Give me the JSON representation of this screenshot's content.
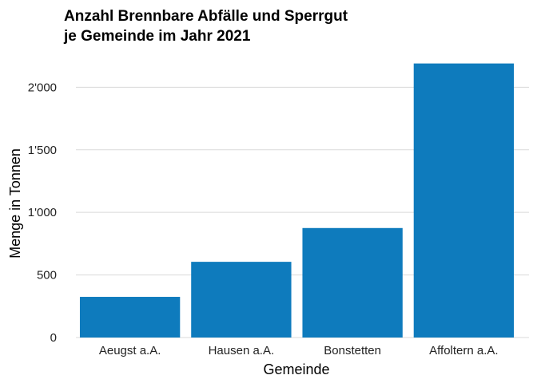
{
  "chart_data": {
    "type": "bar",
    "title_lines": [
      "Anzahl Brennbare Abfälle und Sperrgut",
      "je Gemeinde im Jahr 2021"
    ],
    "xlabel": "Gemeinde",
    "ylabel": "Menge in Tonnen",
    "categories": [
      "Aeugst a.A.",
      "Hausen a.A.",
      "Bonstetten",
      "Affoltern a.A."
    ],
    "values": [
      325,
      605,
      875,
      2190
    ],
    "ylim": [
      0,
      2200
    ],
    "yticks": [
      0,
      500,
      1000,
      1500,
      2000
    ],
    "ytick_labels": [
      "0",
      "500",
      "1'000",
      "1'500",
      "2'000"
    ],
    "grid": true,
    "bar_color": "#0e7bbd"
  }
}
